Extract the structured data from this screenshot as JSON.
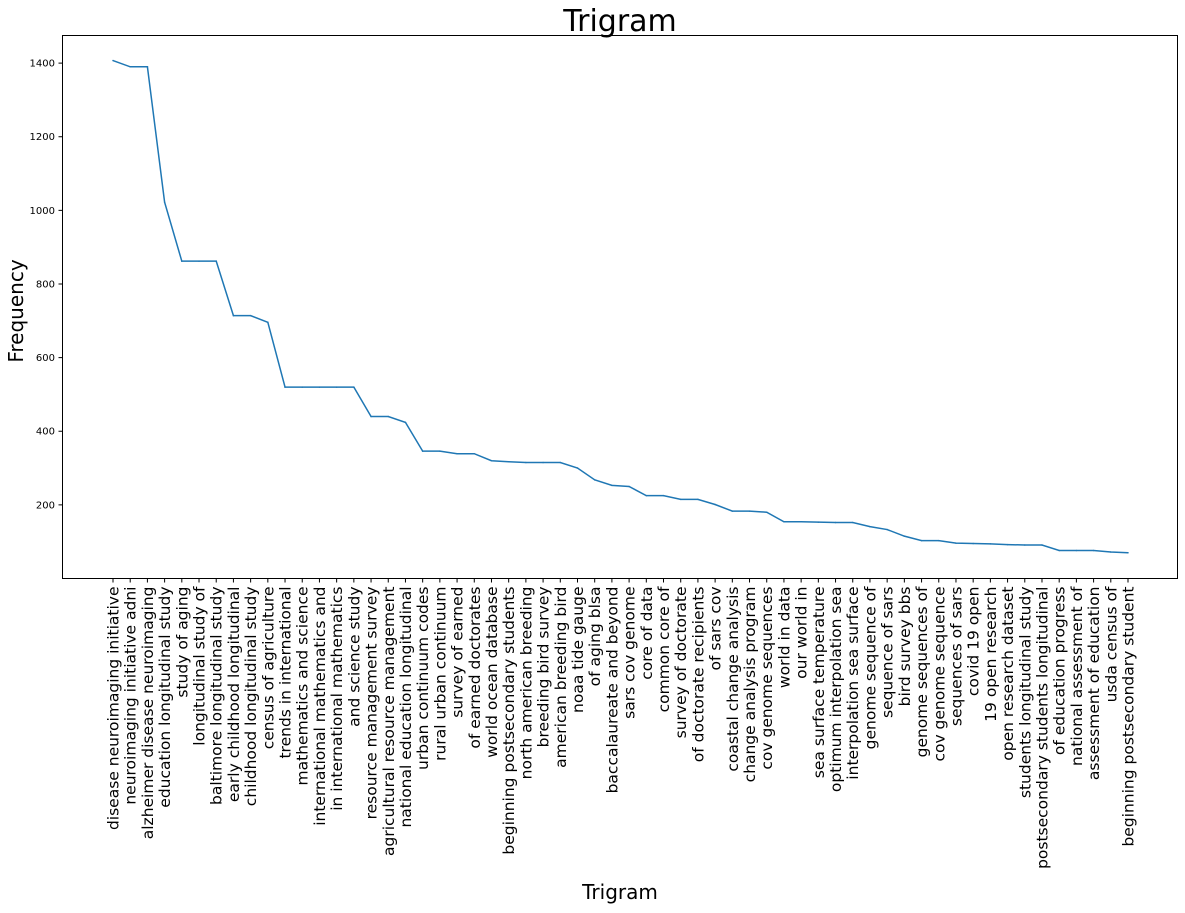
{
  "chart_data": {
    "type": "line",
    "title": "Trigram",
    "xlabel": "Trigram",
    "ylabel": "Frequency",
    "ylim": [
      0,
      1475
    ],
    "yticks": [
      200,
      400,
      600,
      800,
      1000,
      1200,
      1400
    ],
    "grid": false,
    "line_color": "#1f77b4",
    "categories": [
      "disease neuroimaging initiative",
      "neuroimaging initiative adni",
      "alzheimer disease neuroimaging",
      "education longitudinal study",
      "study of aging",
      "longitudinal study of",
      "baltimore longitudinal study",
      "early childhood longitudinal",
      "childhood longitudinal study",
      "census of agriculture",
      "trends in international",
      "mathematics and science",
      "international mathematics and",
      "in international mathematics",
      "and science study",
      "resource management survey",
      "agricultural resource management",
      "national education longitudinal",
      "urban continuum codes",
      "rural urban continuum",
      "survey of earned",
      "of earned doctorates",
      "world ocean database",
      "beginning postsecondary students",
      "north american breeding",
      "breeding bird survey",
      "american breeding bird",
      "noaa tide gauge",
      "of aging blsa",
      "baccalaureate and beyond",
      "sars cov genome",
      "core of data",
      "common core of",
      "survey of doctorate",
      "of doctorate recipients",
      "of sars cov",
      "coastal change analysis",
      "change analysis program",
      "cov genome sequences",
      "world in data",
      "our world in",
      "sea surface temperature",
      "optimum interpolation sea",
      "interpolation sea surface",
      "genome sequence of",
      "sequence of sars",
      "bird survey bbs",
      "genome sequences of",
      "cov genome sequence",
      "sequences of sars",
      "covid 19 open",
      "19 open research",
      "open research dataset",
      "students longitudinal study",
      "postsecondary students longitudinal",
      "of education progress",
      "national assessment of",
      "assessment of education",
      "usda census of",
      "beginning postsecondary student"
    ],
    "values": [
      1407,
      1390,
      1390,
      1022,
      862,
      862,
      862,
      714,
      714,
      696,
      520,
      520,
      520,
      520,
      520,
      440,
      440,
      424,
      346,
      346,
      339,
      339,
      320,
      317,
      315,
      315,
      315,
      300,
      268,
      253,
      250,
      225,
      225,
      215,
      215,
      201,
      183,
      183,
      180,
      154,
      154,
      153,
      152,
      152,
      141,
      133,
      115,
      103,
      103,
      96,
      95,
      94,
      92,
      91,
      91,
      76,
      76,
      76,
      72,
      70
    ]
  }
}
